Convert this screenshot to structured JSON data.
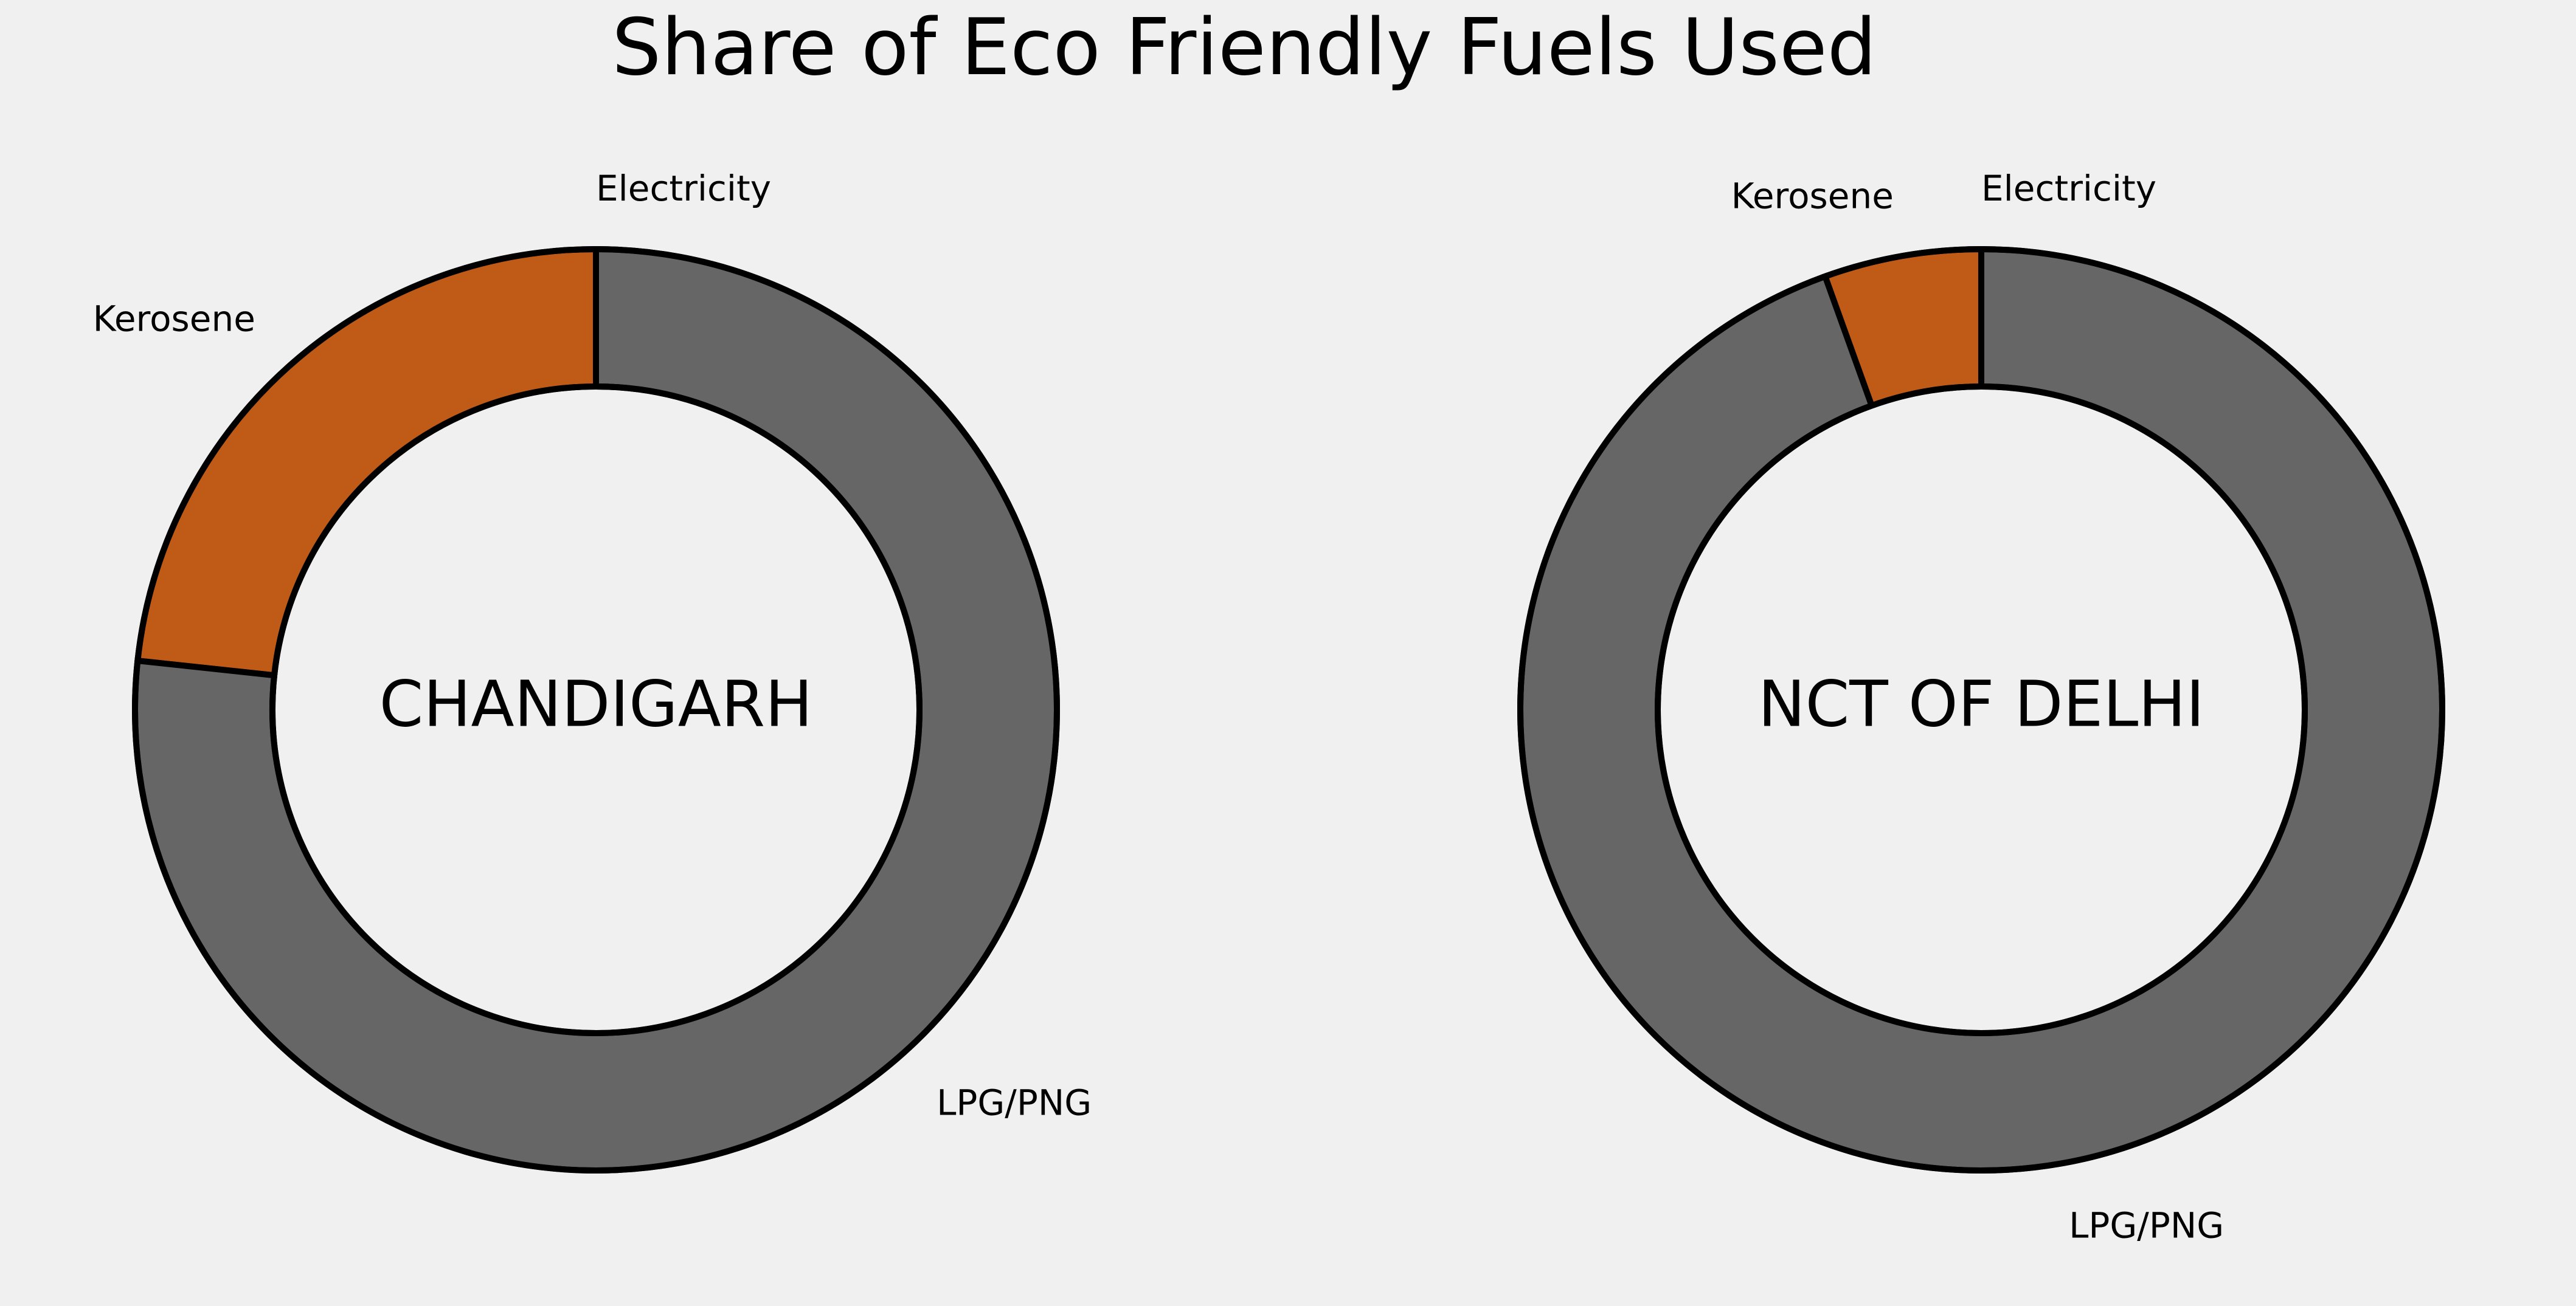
{
  "figure": {
    "title": "Share of Eco Friendly Fuels Used",
    "background": "#f0f0f0"
  },
  "chart_data": [
    {
      "type": "pie",
      "variant": "donut",
      "title": "",
      "center_label": "CHANDIGARH",
      "start_angle_deg": 90,
      "direction": "counterclockwise",
      "categories": [
        "Electricity",
        "Kerosene",
        "LPG/PNG"
      ],
      "values": [
        0.0,
        23.3,
        76.7
      ],
      "colors": [
        "#e5ae38",
        "#bf5b17",
        "#666666"
      ],
      "legend": "none"
    },
    {
      "type": "pie",
      "variant": "donut",
      "title": "",
      "center_label": "NCT OF DELHI",
      "start_angle_deg": 90,
      "direction": "counterclockwise",
      "categories": [
        "Electricity",
        "Kerosene",
        "LPG/PNG"
      ],
      "values": [
        0.0,
        5.5,
        94.5
      ],
      "colors": [
        "#e5ae38",
        "#bf5b17",
        "#666666"
      ],
      "legend": "none"
    }
  ]
}
